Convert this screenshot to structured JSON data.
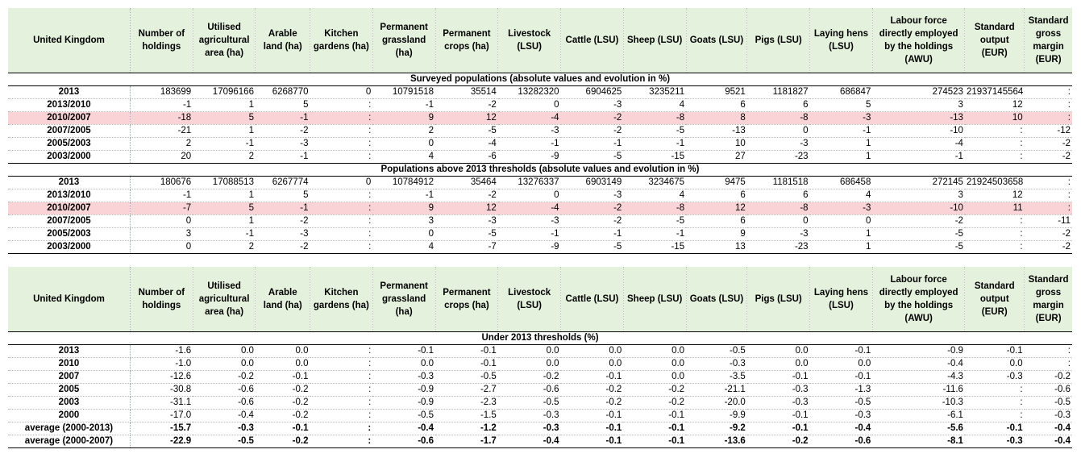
{
  "columns": [
    "United Kingdom",
    "Number of holdings",
    "Utilised agricultural area (ha)",
    "Arable land (ha)",
    "Kitchen gardens (ha)",
    "Permanent grassland (ha)",
    "Permanent crops (ha)",
    "Livestock (LSU)",
    "Cattle (LSU)",
    "Sheep (LSU)",
    "Goats (LSU)",
    "Pigs (LSU)",
    "Laying hens (LSU)",
    "Labour force directly employed by the holdings (AWU)",
    "Standard output (EUR)",
    "Standard gross margin (EUR)"
  ],
  "table1": {
    "section1_title": "Surveyed populations (absolute values and evolution in %)",
    "section1_rows": [
      {
        "label": "2013",
        "cells": [
          "183699",
          "17096166",
          "6268770",
          "0",
          "10791518",
          "35514",
          "13282320",
          "6904625",
          "3235211",
          "9521",
          "1181827",
          "686847",
          "274523",
          "21937145564",
          ":"
        ]
      },
      {
        "label": "2013/2010",
        "cells": [
          "-1",
          "1",
          "5",
          ":",
          "-1",
          "-2",
          "0",
          "-3",
          "4",
          "6",
          "6",
          "5",
          "3",
          "12",
          ":"
        ]
      },
      {
        "label": "2010/2007",
        "cells": [
          "-18",
          "5",
          "-1",
          ":",
          "9",
          "12",
          "-4",
          "-2",
          "-8",
          "8",
          "-8",
          "-3",
          "-13",
          "10",
          ":"
        ]
      },
      {
        "label": "2007/2005",
        "cells": [
          "-21",
          "1",
          "-2",
          ":",
          "2",
          "-5",
          "-3",
          "-2",
          "-5",
          "-13",
          "0",
          "-1",
          "-10",
          ":",
          "-12"
        ]
      },
      {
        "label": "2005/2003",
        "cells": [
          "2",
          "-1",
          "-3",
          ":",
          "0",
          "-4",
          "-1",
          "-1",
          "-1",
          "10",
          "-3",
          "1",
          "-4",
          ":",
          "-2"
        ]
      },
      {
        "label": "2003/2000",
        "cells": [
          "20",
          "2",
          "-1",
          ":",
          "4",
          "-6",
          "-9",
          "-5",
          "-15",
          "27",
          "-23",
          "1",
          "-1",
          ":",
          "-2"
        ]
      }
    ],
    "section2_title": "Populations  above 2013 thresholds (absolute values and evolution in %)",
    "section2_rows": [
      {
        "label": "2013",
        "cells": [
          "180676",
          "17088513",
          "6267774",
          "0",
          "10784912",
          "35464",
          "13276337",
          "6903149",
          "3234675",
          "9475",
          "1181518",
          "686458",
          "272145",
          "21924503658",
          ":"
        ]
      },
      {
        "label": "2013/2010",
        "cells": [
          "-1",
          "1",
          "5",
          ":",
          "-1",
          "-2",
          "0",
          "-3",
          "4",
          "6",
          "6",
          "4",
          "3",
          "12",
          ":"
        ]
      },
      {
        "label": "2010/2007",
        "cells": [
          "-7",
          "5",
          "-1",
          ":",
          "9",
          "12",
          "-4",
          "-2",
          "-8",
          "12",
          "-8",
          "-3",
          "-10",
          "11",
          ":"
        ]
      },
      {
        "label": "2007/2005",
        "cells": [
          "0",
          "1",
          "-2",
          ":",
          "3",
          "-3",
          "-3",
          "-2",
          "-5",
          "6",
          "0",
          "0",
          "-2",
          ":",
          "-11"
        ]
      },
      {
        "label": "2005/2003",
        "cells": [
          "3",
          "-1",
          "-3",
          ":",
          "0",
          "-5",
          "-1",
          "-1",
          "-1",
          "9",
          "-3",
          "1",
          "-5",
          ":",
          "-2"
        ]
      },
      {
        "label": "2003/2000",
        "cells": [
          "0",
          "2",
          "-2",
          ":",
          "4",
          "-7",
          "-9",
          "-5",
          "-15",
          "13",
          "-23",
          "1",
          "-5",
          ":",
          "-2"
        ]
      }
    ]
  },
  "table2": {
    "section_title": "Under 2013 thresholds (%)",
    "rows": [
      {
        "label": "2013",
        "cells": [
          "-1.6",
          "0.0",
          "0.0",
          ":",
          "-0.1",
          "-0.1",
          "0.0",
          "0.0",
          "0.0",
          "-0.5",
          "0.0",
          "-0.1",
          "-0.9",
          "-0.1",
          ":"
        ]
      },
      {
        "label": "2010",
        "cells": [
          "-1.0",
          "0.0",
          "0.0",
          ":",
          "0.0",
          "-0.1",
          "0.0",
          "0.0",
          "0.0",
          "-0.3",
          "0.0",
          "0.0",
          "-0.4",
          "0.0",
          ":"
        ]
      },
      {
        "label": "2007",
        "cells": [
          "-12.6",
          "-0.2",
          "-0.1",
          ":",
          "-0.3",
          "-0.5",
          "-0.2",
          "-0.1",
          "0.0",
          "-3.5",
          "-0.1",
          "-0.1",
          "-4.3",
          "-0.3",
          "-0.2"
        ]
      },
      {
        "label": "2005",
        "cells": [
          "-30.8",
          "-0.6",
          "-0.2",
          ":",
          "-0.9",
          "-2.7",
          "-0.6",
          "-0.2",
          "-0.2",
          "-21.1",
          "-0.3",
          "-1.3",
          "-11.6",
          ":",
          "-0.6"
        ]
      },
      {
        "label": "2003",
        "cells": [
          "-31.1",
          "-0.6",
          "-0.2",
          ":",
          "-0.9",
          "-2.3",
          "-0.5",
          "-0.2",
          "-0.2",
          "-20.0",
          "-0.3",
          "-0.5",
          "-10.3",
          ":",
          "-0.5"
        ]
      },
      {
        "label": "2000",
        "cells": [
          "-17.0",
          "-0.4",
          "-0.2",
          ":",
          "-0.5",
          "-1.5",
          "-0.3",
          "-0.1",
          "-0.1",
          "-9.9",
          "-0.1",
          "-0.3",
          "-6.1",
          ":",
          "-0.3"
        ]
      }
    ],
    "avg_rows": [
      {
        "label": "average (2000-2013)",
        "cells": [
          "-15.7",
          "-0.3",
          "-0.1",
          ":",
          "-0.4",
          "-1.2",
          "-0.3",
          "-0.1",
          "-0.1",
          "-9.2",
          "-0.1",
          "-0.4",
          "-5.6",
          "-0.1",
          "-0.4"
        ]
      },
      {
        "label": "average (2000-2007)",
        "cells": [
          "-22.9",
          "-0.5",
          "-0.2",
          ":",
          "-0.6",
          "-1.7",
          "-0.4",
          "-0.1",
          "-0.1",
          "-13.6",
          "-0.2",
          "-0.6",
          "-8.1",
          "-0.3",
          "-0.4"
        ]
      }
    ]
  },
  "colors": {
    "header_background": "#e4f1dc",
    "highlight_row": "#f9d3d5"
  }
}
